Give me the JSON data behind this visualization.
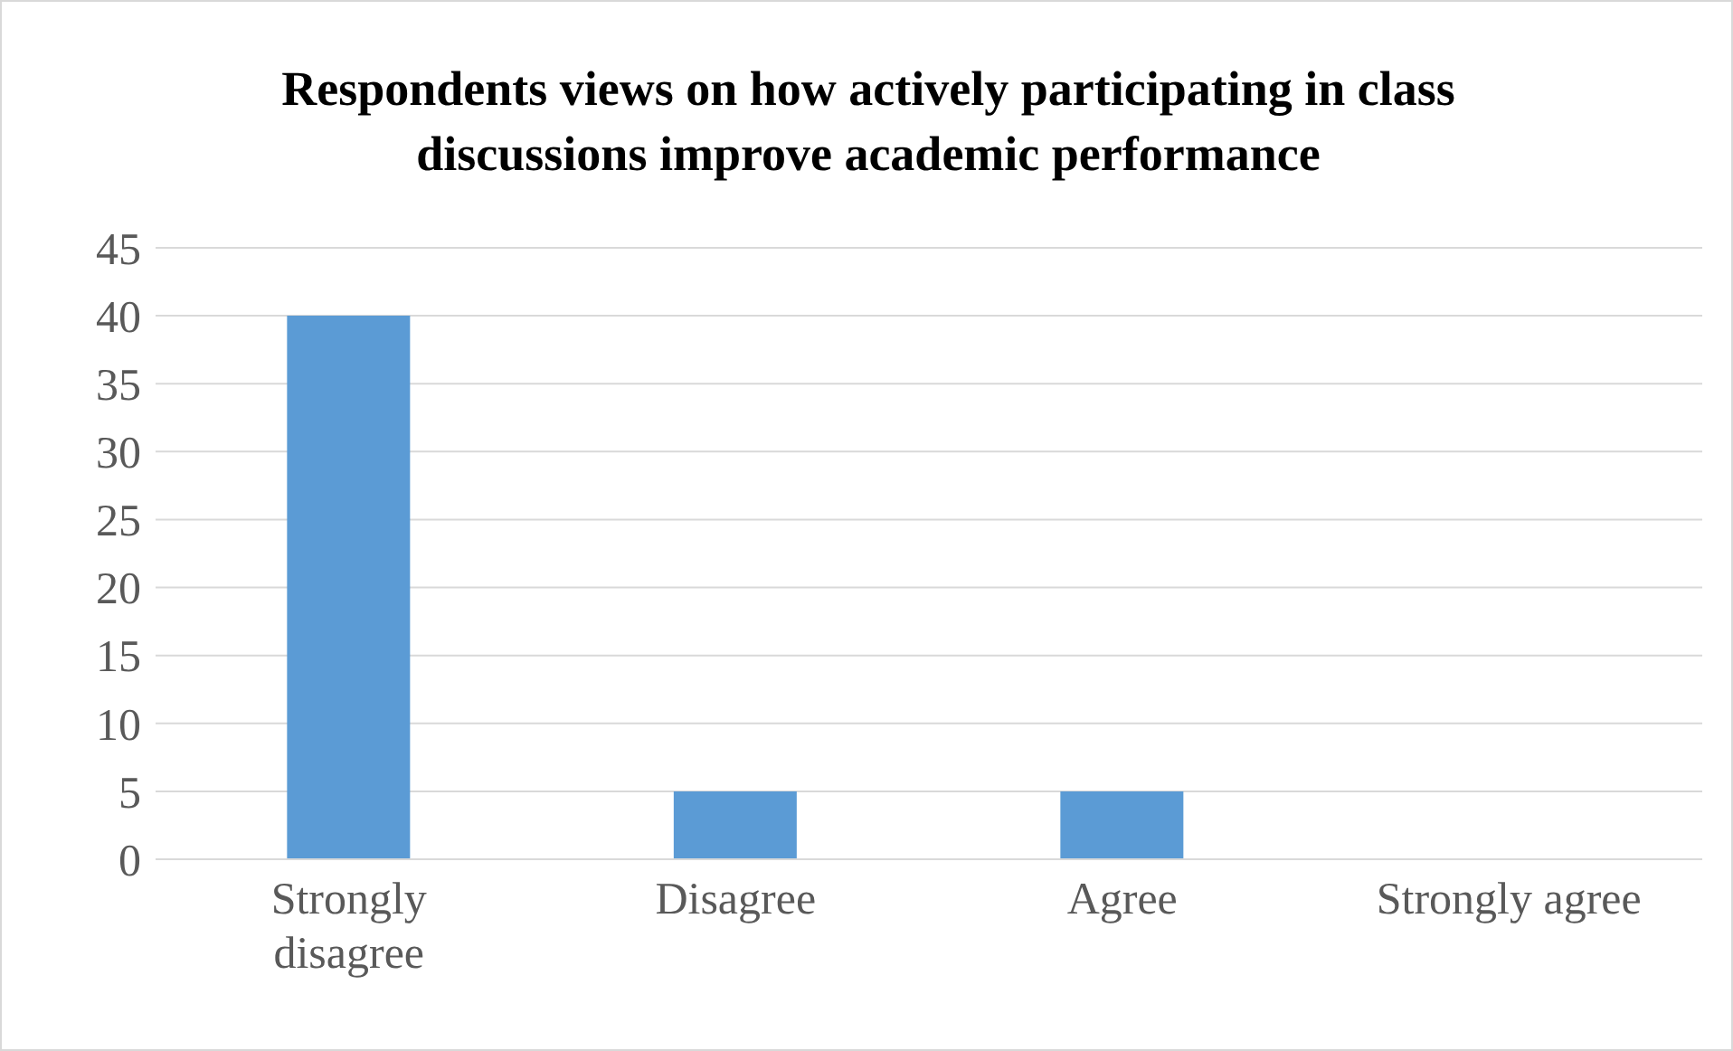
{
  "chart_data": {
    "type": "bar",
    "title": "Respondents views on how actively participating in class discussions improve academic performance",
    "categories": [
      "Strongly disagree",
      "Disagree",
      "Agree",
      "Strongly agree"
    ],
    "values": [
      40,
      5,
      5,
      0
    ],
    "color": "#5b9bd5",
    "ylim": [
      0,
      45
    ],
    "yticks": [
      0,
      5,
      10,
      15,
      20,
      25,
      30,
      35,
      40,
      45
    ],
    "grid": "y",
    "legend": false
  }
}
